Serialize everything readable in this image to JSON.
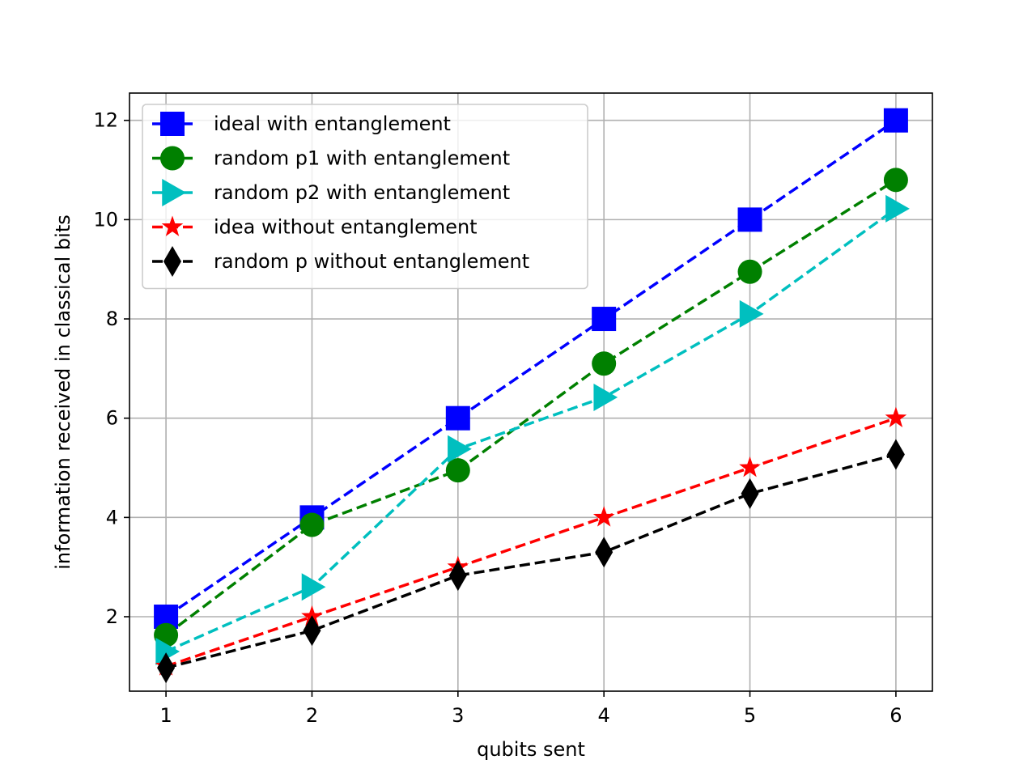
{
  "chart_data": {
    "type": "line",
    "title": "",
    "xlabel": "qubits sent",
    "ylabel": "information received in classical bits",
    "xlim": [
      0.75,
      6.25
    ],
    "ylim": [
      0.5,
      12.55
    ],
    "xticks": [
      1,
      2,
      3,
      4,
      5,
      6
    ],
    "yticks": [
      2,
      4,
      6,
      8,
      10,
      12
    ],
    "grid": true,
    "legend_position": "upper-left",
    "series": [
      {
        "name": "ideal with entanglement",
        "x": [
          1,
          2,
          3,
          4,
          5,
          6
        ],
        "values": [
          2,
          4,
          6,
          8,
          10,
          12
        ],
        "color": "#0000ff",
        "marker": "square"
      },
      {
        "name": "random p1 with entanglement",
        "x": [
          1,
          2,
          3,
          4,
          5,
          6
        ],
        "values": [
          1.63,
          3.85,
          4.95,
          7.1,
          8.95,
          10.8
        ],
        "color": "#008000",
        "marker": "circle"
      },
      {
        "name": "random p2 with entanglement",
        "x": [
          1,
          2,
          3,
          4,
          5,
          6
        ],
        "values": [
          1.3,
          2.6,
          5.38,
          6.42,
          8.1,
          10.22
        ],
        "color": "#00bfbf",
        "marker": "triangle-right"
      },
      {
        "name": "idea without entanglement",
        "x": [
          1,
          2,
          3,
          4,
          5,
          6
        ],
        "values": [
          1,
          2,
          3,
          4,
          5,
          6
        ],
        "color": "#ff0000",
        "marker": "star"
      },
      {
        "name": "random p without entanglement",
        "x": [
          1,
          2,
          3,
          4,
          5,
          6
        ],
        "values": [
          0.97,
          1.72,
          2.83,
          3.3,
          4.48,
          5.27
        ],
        "color": "#000000",
        "marker": "thin-diamond"
      }
    ]
  }
}
